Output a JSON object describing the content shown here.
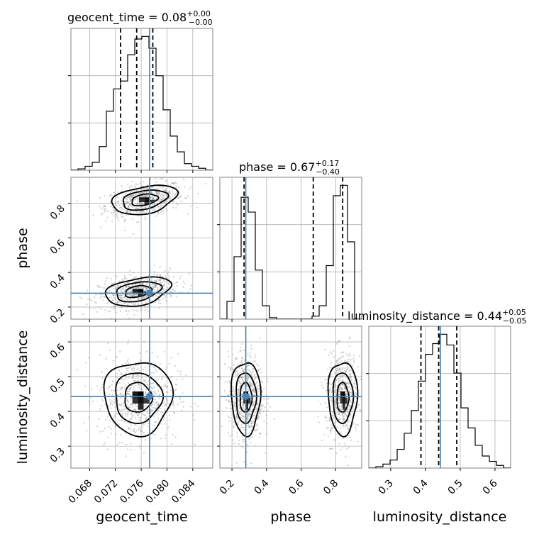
{
  "chart_data": {
    "type": "corner",
    "parameters": [
      "geocent_time",
      "phase",
      "luminosity_distance"
    ],
    "titles": [
      {
        "name": "geocent_time",
        "value": "0.08",
        "plus": "+0.00",
        "minus": "−0.00"
      },
      {
        "name": "phase",
        "value": "0.67",
        "plus": "+0.17",
        "minus": "−0.40"
      },
      {
        "name": "luminosity_distance",
        "value": "0.44",
        "plus": "+0.05",
        "minus": "−0.05"
      }
    ],
    "axis_labels": [
      "geocent_time",
      "phase",
      "luminosity_distance"
    ],
    "ranges": [
      [
        0.0651,
        0.0871
      ],
      [
        0.13,
        0.95
      ],
      [
        0.237,
        0.645
      ]
    ],
    "ticks": {
      "geocent_time": [
        "0.068",
        "0.072",
        "0.076",
        "0.080",
        "0.084"
      ],
      "phase": [
        "0.2",
        "0.4",
        "0.6",
        "0.8"
      ],
      "luminosity_distance": [
        "0.3",
        "0.4",
        "0.5",
        "0.6"
      ]
    },
    "truths": [
      0.0773,
      0.28,
      0.443
    ],
    "quantiles": [
      [
        0.0728,
        0.0753,
        0.0778
      ],
      [
        0.27,
        0.67,
        0.84
      ],
      [
        0.387,
        0.438,
        0.49
      ]
    ],
    "histograms": [
      {
        "parameter": "geocent_time",
        "bin_start": 0.0651,
        "bin_width": 0.0011,
        "counts": [
          0.0,
          0.01,
          0.03,
          0.06,
          0.18,
          0.45,
          0.62,
          0.68,
          0.88,
          1.0,
          1.02,
          0.93,
          0.72,
          0.46,
          0.26,
          0.14,
          0.05,
          0.03,
          0.015,
          0.0
        ]
      },
      {
        "parameter": "phase",
        "bin_start": 0.13,
        "bin_width": 0.041,
        "counts": [
          0.0,
          0.12,
          0.42,
          0.82,
          0.72,
          0.33,
          0.09,
          0.01,
          0.0,
          0.0,
          0.0,
          0.0,
          0.0,
          0.02,
          0.09,
          0.36,
          0.83,
          0.9,
          0.52,
          0.0
        ]
      },
      {
        "parameter": "luminosity_distance",
        "bin_start": 0.237,
        "bin_width": 0.0204,
        "counts": [
          0.0,
          0.01,
          0.03,
          0.06,
          0.14,
          0.26,
          0.43,
          0.65,
          0.85,
          0.93,
          1.0,
          0.92,
          0.71,
          0.45,
          0.3,
          0.17,
          0.09,
          0.05,
          0.02,
          0.0
        ]
      }
    ],
    "modes_2d": {
      "phase_vs_geocent_time": [
        {
          "center": [
            0.0765,
            0.82
          ],
          "sd": [
            0.0024,
            0.04
          ],
          "rho": 0.35
        },
        {
          "center": [
            0.0755,
            0.29
          ],
          "sd": [
            0.0024,
            0.04
          ],
          "rho": 0.35
        }
      ],
      "luminosity_distance_vs_geocent_time": [
        {
          "center": [
            0.0755,
            0.44
          ],
          "sd": [
            0.0025,
            0.05
          ],
          "rho": 0.0
        }
      ],
      "luminosity_distance_vs_phase": [
        {
          "center": [
            0.28,
            0.44
          ],
          "sd": [
            0.04,
            0.05
          ],
          "rho": 0.0
        },
        {
          "center": [
            0.84,
            0.44
          ],
          "sd": [
            0.04,
            0.05
          ],
          "rho": 0.0
        }
      ]
    },
    "grid": true,
    "colors": {
      "truth": "#4682b4",
      "hist": "#000000",
      "quantile": "#000000",
      "frame": "#808080",
      "grid": "#b0b0b0"
    }
  }
}
